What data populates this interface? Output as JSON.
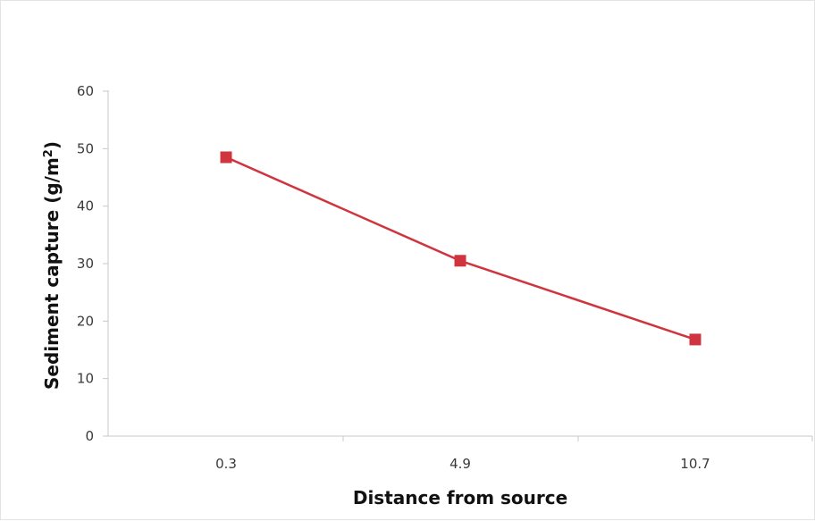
{
  "chart_data": {
    "type": "line",
    "title": "",
    "xlabel": "Distance from source",
    "ylabel_main": "Sediment capture (g/m",
    "ylabel_sup": "2",
    "ylabel_end": ")",
    "categories": [
      "0.3",
      "4.9",
      "10.7"
    ],
    "series": [
      {
        "values": [
          48.5,
          30.5,
          16.8
        ],
        "color": "#d0343f",
        "marker": "square"
      }
    ],
    "ylim": [
      0,
      60
    ],
    "yticks": [
      "0",
      "10",
      "20",
      "30",
      "40",
      "50",
      "60"
    ],
    "grid": false,
    "legend": "none"
  }
}
